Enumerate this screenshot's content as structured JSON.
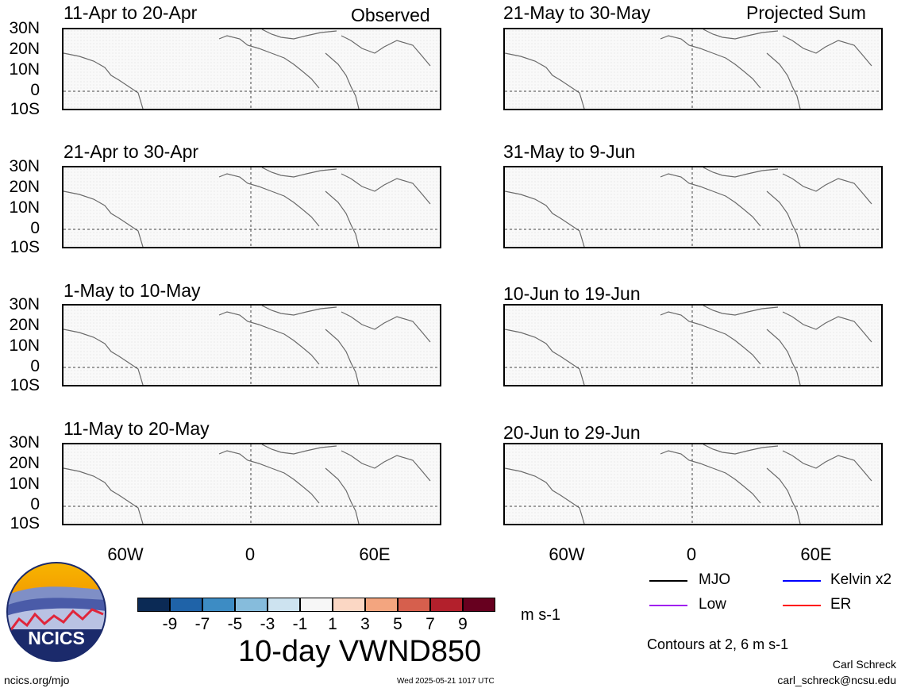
{
  "headers": {
    "left": "Observed",
    "right": "Projected Sum"
  },
  "panels": [
    {
      "title": "11-Apr to 20-Apr"
    },
    {
      "title": "21-Apr to 30-Apr"
    },
    {
      "title": "1-May to 10-May"
    },
    {
      "title": "11-May to 20-May"
    },
    {
      "title": "21-May to 30-May"
    },
    {
      "title": "31-May to 9-Jun"
    },
    {
      "title": "10-Jun to 19-Jun"
    },
    {
      "title": "20-Jun to 29-Jun"
    }
  ],
  "lat_labels": [
    "30N",
    "20N",
    "10N",
    "0",
    "10S"
  ],
  "lon_labels": [
    "60W",
    "0",
    "60E"
  ],
  "colorbar": {
    "colors": [
      "#0b2a55",
      "#1f63a8",
      "#3d8cc4",
      "#86bcdc",
      "#cde3f0",
      "#f7f7f7",
      "#fbd7c4",
      "#f3a57f",
      "#d65f4d",
      "#b3202c",
      "#67001f"
    ],
    "labels": [
      "-9",
      "-7",
      "-5",
      "-3",
      "-1",
      "1",
      "3",
      "5",
      "7",
      "9"
    ],
    "unit": "m s-1",
    "title": "10-day VWND850"
  },
  "legend": {
    "items": [
      {
        "label": "MJO",
        "color": "#000000"
      },
      {
        "label": "Kelvin x2",
        "color": "#0000ff"
      },
      {
        "label": "Low",
        "color": "#a020f0"
      },
      {
        "label": "ER",
        "color": "#ff0000"
      }
    ],
    "contours_note": "Contours at 2, 6 m s-1"
  },
  "logo": {
    "text": "NCICS"
  },
  "footer": {
    "url": "ncics.org/mjo",
    "timestamp": "Wed 2025-05-21 1017 UTC",
    "author": "Carl Schreck",
    "email": "carl_schreck@ncsu.edu"
  }
}
